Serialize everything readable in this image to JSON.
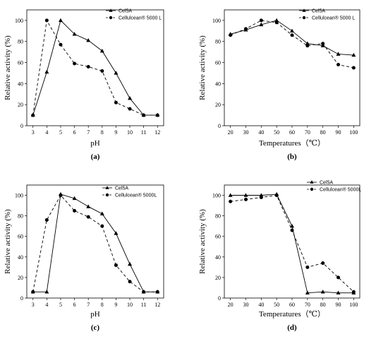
{
  "chart_data": [
    {
      "type": "line",
      "panel_label": "(a)",
      "xlabel": "pH",
      "ylabel": "Relative activity (%)",
      "x": [
        3,
        4,
        5,
        6,
        7,
        8,
        9,
        10,
        11,
        12
      ],
      "xticks": [
        "3",
        "4",
        "5",
        "6",
        "7",
        "8",
        "9",
        "10",
        "11",
        "12"
      ],
      "yticks": [
        "0",
        "20",
        "40",
        "60",
        "80",
        "100"
      ],
      "ylim": [
        0,
        110
      ],
      "legend_position": "top-right",
      "series": [
        {
          "name": "Cel5A",
          "marker": "triangle",
          "line": "solid",
          "values": [
            10,
            51,
            100,
            87,
            81,
            71,
            50,
            26,
            10,
            10
          ]
        },
        {
          "name": "Cellulcean® 5000 L",
          "marker": "circle",
          "line": "dashed",
          "values": [
            10,
            100,
            77,
            59,
            56,
            52,
            22,
            16,
            10,
            10
          ]
        }
      ]
    },
    {
      "type": "line",
      "panel_label": "(b)",
      "xlabel": "Temperatures（℃）",
      "ylabel": "Relative activity (%)",
      "x": [
        20,
        30,
        40,
        50,
        60,
        70,
        80,
        90,
        100
      ],
      "xticks": [
        "20",
        "30",
        "40",
        "50",
        "60",
        "70",
        "80",
        "90",
        "100"
      ],
      "yticks": [
        "0",
        "20",
        "40",
        "60",
        "80",
        "100"
      ],
      "ylim": [
        0,
        110
      ],
      "legend_position": "top-right",
      "series": [
        {
          "name": "Cel5A",
          "marker": "triangle",
          "line": "solid",
          "values": [
            87,
            91,
            96,
            100,
            90,
            78,
            76,
            68,
            67
          ]
        },
        {
          "name": "Cellulcean® 5000 L",
          "marker": "circle",
          "line": "dashed",
          "values": [
            86,
            92,
            100,
            98,
            86,
            76,
            78,
            58,
            55
          ]
        }
      ]
    },
    {
      "type": "line",
      "panel_label": "(c)",
      "xlabel": "pH",
      "ylabel": "Relative activity (%)",
      "x": [
        3,
        4,
        5,
        6,
        7,
        8,
        9,
        10,
        11,
        12
      ],
      "xticks": [
        "3",
        "4",
        "5",
        "6",
        "7",
        "8",
        "9",
        "10",
        "11",
        "12"
      ],
      "yticks": [
        "0",
        "20",
        "40",
        "60",
        "80",
        "100"
      ],
      "ylim": [
        0,
        110
      ],
      "legend_position": "top-right",
      "series": [
        {
          "name": "Cel5A",
          "marker": "triangle",
          "line": "solid",
          "values": [
            6,
            6,
            101,
            97,
            89,
            82,
            63,
            33,
            6,
            6
          ]
        },
        {
          "name": "Cellulcean® 5000L",
          "marker": "circle",
          "line": "dashed",
          "values": [
            6,
            76,
            100,
            85,
            79,
            70,
            32,
            16,
            6,
            6
          ]
        }
      ]
    },
    {
      "type": "line",
      "panel_label": "(d)",
      "xlabel": "Temperatures（℃）",
      "ylabel": "Relative activity (%)",
      "x": [
        20,
        30,
        40,
        50,
        60,
        70,
        80,
        90,
        100
      ],
      "xticks": [
        "20",
        "30",
        "40",
        "50",
        "60",
        "70",
        "80",
        "90",
        "100"
      ],
      "yticks": [
        "0",
        "20",
        "40",
        "60",
        "80",
        "100"
      ],
      "ylim": [
        0,
        110
      ],
      "legend_position": "top-right",
      "series": [
        {
          "name": "Cel5A",
          "marker": "triangle",
          "line": "solid",
          "values": [
            100,
            100,
            100,
            101,
            70,
            5,
            6,
            5,
            5
          ]
        },
        {
          "name": "Cellulcean® 5000L",
          "marker": "circle",
          "line": "dashed",
          "values": [
            94,
            96,
            98,
            100,
            66,
            30,
            34,
            20,
            6
          ]
        }
      ]
    }
  ]
}
